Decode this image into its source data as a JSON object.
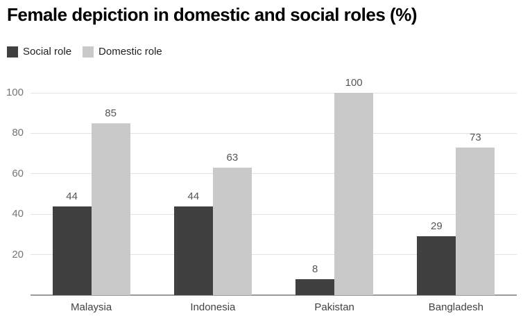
{
  "title": "Female depiction in domestic and social roles (%)",
  "legend": {
    "items": [
      {
        "label": "Social role",
        "color": "#404040"
      },
      {
        "label": "Domestic role",
        "color": "#c9c9c9"
      }
    ]
  },
  "colors": {
    "social": "#404040",
    "domestic": "#c9c9c9",
    "gridline": "#e2e2e2",
    "baseline": "#9a9a9a",
    "y_tick_label": "#757575",
    "x_tick_label": "#424242",
    "value_label": "#555555",
    "title": "#000000",
    "background": "#ffffff"
  },
  "chart_data": {
    "type": "bar",
    "title": "Female depiction in domestic and social roles (%)",
    "categories": [
      "Malaysia",
      "Indonesia",
      "Pakistan",
      "Bangladesh"
    ],
    "series": [
      {
        "name": "Social role",
        "values": [
          44,
          44,
          8,
          29
        ]
      },
      {
        "name": "Domestic role",
        "values": [
          85,
          63,
          100,
          73
        ]
      }
    ],
    "xlabel": "",
    "ylabel": "",
    "ylim": [
      0,
      100
    ],
    "yticks": [
      20,
      40,
      60,
      80,
      100
    ],
    "grid": "horizontal",
    "legend_position": "top-left",
    "value_labels": true
  }
}
